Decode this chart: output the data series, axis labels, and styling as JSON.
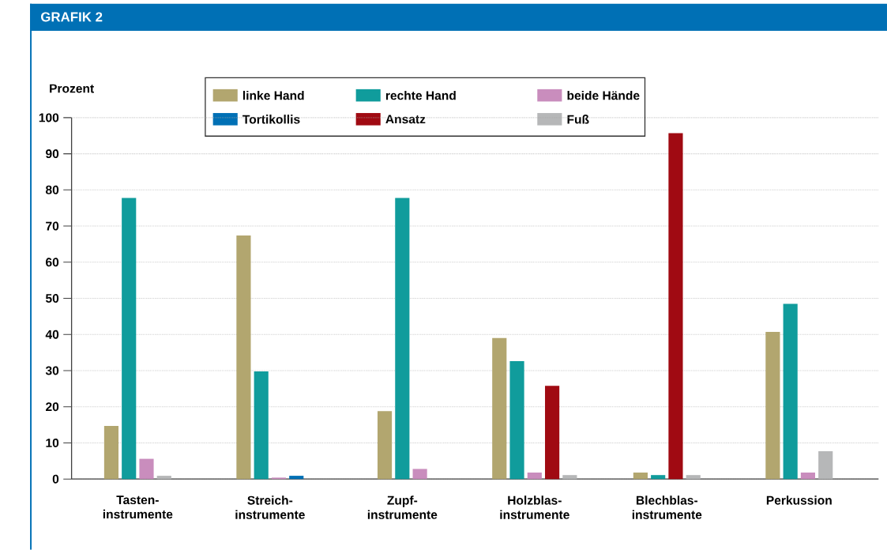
{
  "chart_data": {
    "type": "bar",
    "title": "GRAFIK 2",
    "ylabel": "Prozent",
    "categories": [
      "Tasten-instrumente",
      "Streich-instrumente",
      "Zupf-instrumente",
      "Holzblas-instrumente",
      "Blechblas-instrumente",
      "Perkussion"
    ],
    "series": [
      {
        "name": "linke Hand",
        "color": "#b2a66f",
        "values": [
          14.7,
          67.4,
          18.8,
          39.0,
          1.8,
          40.7
        ]
      },
      {
        "name": "rechte Hand",
        "color": "#109c9c",
        "values": [
          77.8,
          29.8,
          77.8,
          32.6,
          1.1,
          48.5
        ]
      },
      {
        "name": "beide Hände",
        "color": "#c98dbd",
        "values": [
          5.6,
          0.4,
          2.8,
          1.8,
          null,
          1.8
        ]
      },
      {
        "name": "Tortikollis",
        "color": "#0070b5",
        "values": [
          null,
          0.9,
          null,
          null,
          null,
          null
        ]
      },
      {
        "name": "Ansatz",
        "color": "#a00a12",
        "values": [
          null,
          null,
          null,
          25.8,
          95.7,
          null
        ]
      },
      {
        "name": "Fuß",
        "color": "#b6b7b8",
        "values": [
          0.9,
          null,
          null,
          1.1,
          1.1,
          7.7
        ]
      }
    ],
    "ylim": [
      0,
      100
    ],
    "yticks": [
      0,
      10,
      20,
      30,
      40,
      50,
      60,
      70,
      80,
      90,
      100
    ],
    "grid": "y",
    "legend": "top"
  }
}
